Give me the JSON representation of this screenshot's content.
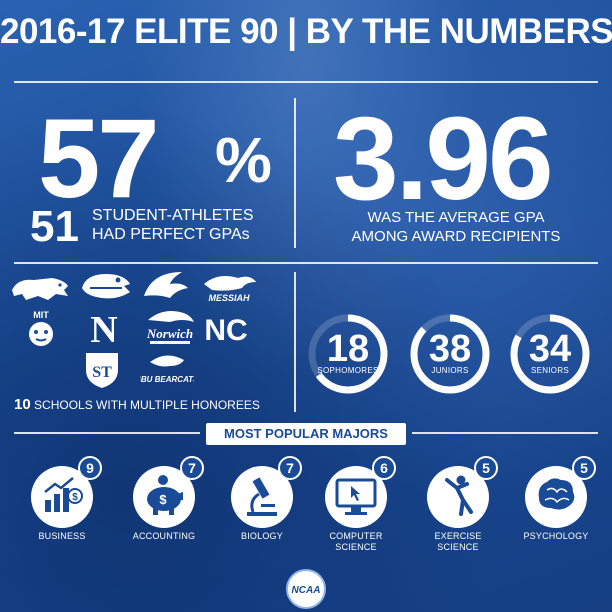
{
  "header": {
    "title": "2016-17 ELITE 90 | BY THE NUMBERS"
  },
  "stat_left": {
    "percent_value": "57",
    "percent_sign": "%",
    "count": "51",
    "caption_line1": "STUDENT-ATHLETES",
    "caption_line2": "HAD PERFECT GPAs"
  },
  "stat_right": {
    "value": "3.96",
    "caption_line1": "WAS THE AVERAGE GPA",
    "caption_line2": "AMONG AWARD RECIPIENTS"
  },
  "schools": {
    "count": "10",
    "caption": "SCHOOLS WITH MULTIPLE HONOREES",
    "logo_texts": {
      "messiah": "MESSIAH",
      "mit": "MIT",
      "nebraska": "N",
      "norwich": "Norwich",
      "unc": "NC",
      "st_thomas": "ST",
      "sbu": "SBU BEARCATS"
    }
  },
  "classes": [
    {
      "value": "18",
      "label": "SOPHOMORES",
      "fraction": 0.2
    },
    {
      "value": "38",
      "label": "JUNIORS",
      "fraction": 0.42
    },
    {
      "value": "34",
      "label": "SENIORS",
      "fraction": 0.38
    }
  ],
  "majors": {
    "title": "MOST POPULAR MAJORS",
    "items": [
      {
        "label1": "BUSINESS",
        "label2": "",
        "count": "9",
        "icon": "bar-chart-icon"
      },
      {
        "label1": "ACCOUNTING",
        "label2": "",
        "count": "7",
        "icon": "piggy-bank-icon"
      },
      {
        "label1": "BIOLOGY",
        "label2": "",
        "count": "7",
        "icon": "microscope-icon"
      },
      {
        "label1": "COMPUTER",
        "label2": "SCIENCE",
        "count": "6",
        "icon": "computer-icon"
      },
      {
        "label1": "EXERCISE",
        "label2": "SCIENCE",
        "count": "5",
        "icon": "stretching-person-icon"
      },
      {
        "label1": "PSYCHOLOGY",
        "label2": "",
        "count": "5",
        "icon": "brain-icon"
      }
    ]
  },
  "footer": {
    "logo_text": "NCAA"
  },
  "colors": {
    "background": "#1b4f9a",
    "accent": "#1a4b96",
    "text": "#ffffff"
  }
}
